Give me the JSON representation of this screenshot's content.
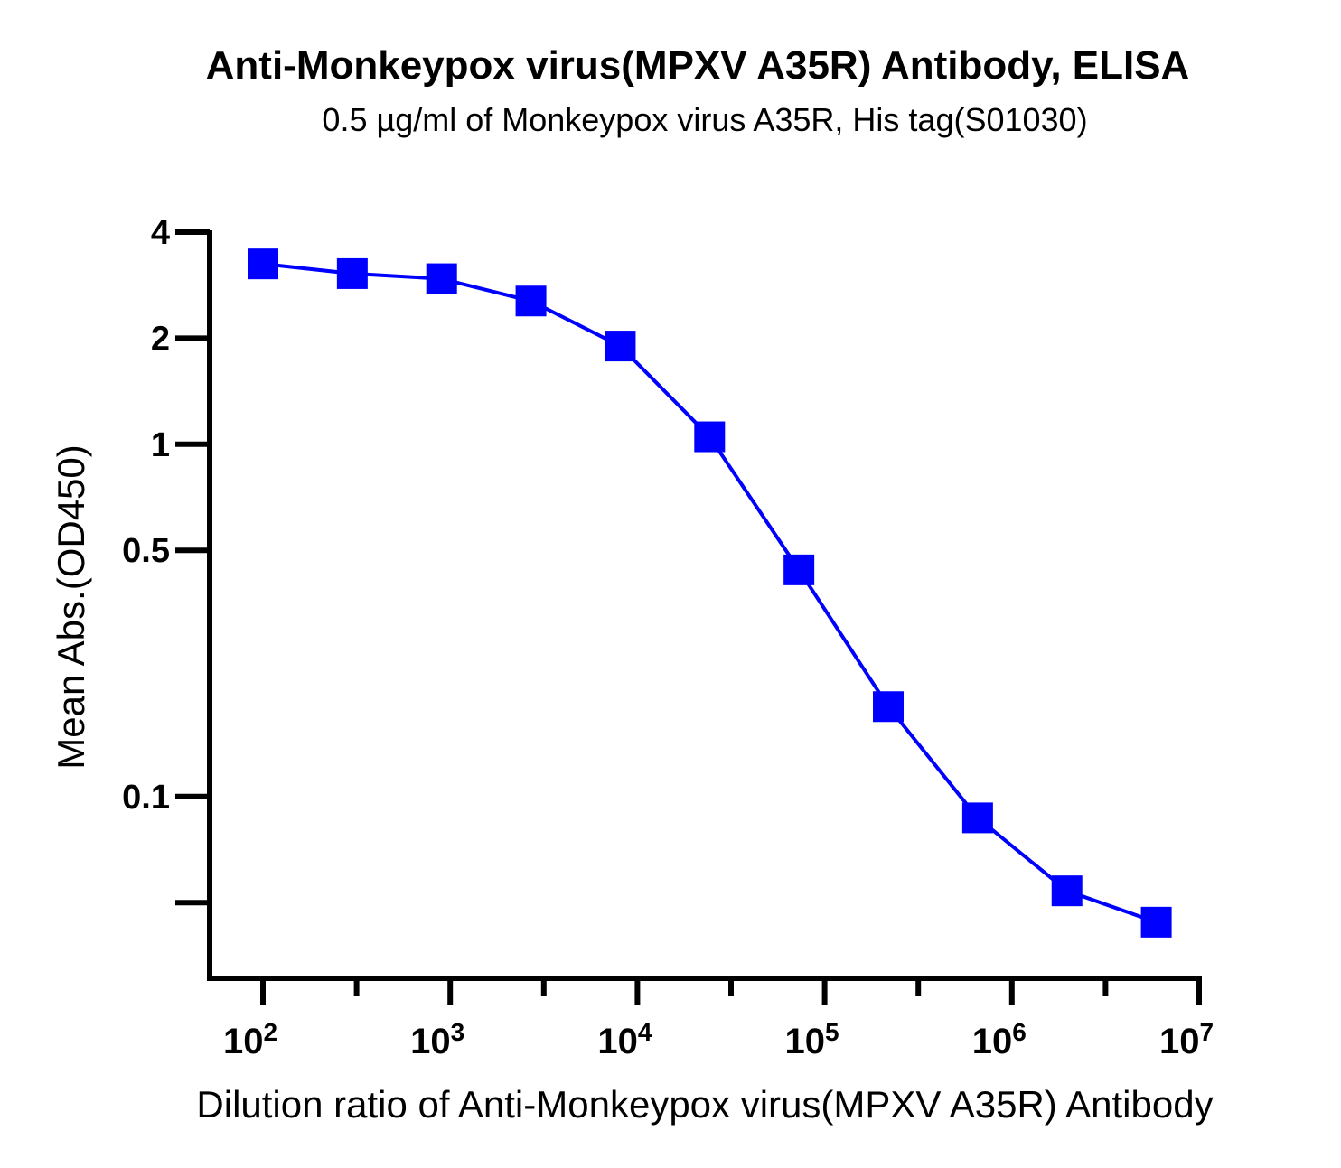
{
  "chart_data": {
    "type": "line",
    "title": "Anti-Monkeypox virus(MPXV A35R) Antibody, ELISA",
    "subtitle": "0.5 µg/ml of Monkeypox virus A35R, His tag(S01030)",
    "xlabel": "Dilution ratio of Anti-Monkeypox virus(MPXV A35R) Antibody",
    "ylabel": "Mean Abs.(OD450)",
    "x_scale": "log",
    "y_scale": "log",
    "xlim": [
      100,
      10000000
    ],
    "ylim": [
      0.025,
      4
    ],
    "x_ticks": [
      {
        "base": "10",
        "exp": "2"
      },
      {
        "base": "10",
        "exp": "3"
      },
      {
        "base": "10",
        "exp": "4"
      },
      {
        "base": "10",
        "exp": "5"
      },
      {
        "base": "10",
        "exp": "6"
      },
      {
        "base": "10",
        "exp": "7"
      }
    ],
    "y_ticks": [
      "4",
      "2",
      "1",
      "0.5",
      "0.1"
    ],
    "grid": false,
    "color": "#0000ff",
    "series": [
      {
        "marker": "square",
        "x": [
          100,
          300,
          900,
          2700,
          8100,
          24300,
          72900,
          218700,
          656100,
          1968300,
          5904900
        ],
        "y": [
          3.25,
          3.05,
          2.95,
          2.55,
          1.9,
          1.05,
          0.44,
          0.18,
          0.087,
          0.054,
          0.044
        ]
      }
    ]
  }
}
